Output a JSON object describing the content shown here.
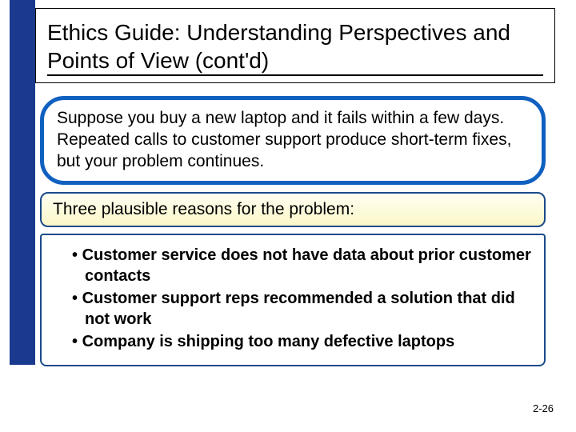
{
  "colors": {
    "sidebar_blue": "#1a3a8f",
    "scenario_border": "#1060c0",
    "box_border": "#1a4a8a",
    "reasons_bg_top": "#fffef2",
    "reasons_bg_bottom": "#fbf7c8",
    "text": "#000000",
    "background": "#ffffff"
  },
  "title": "Ethics Guide: Understanding Perspectives and Points of View (cont'd)",
  "scenario": "Suppose you buy a new laptop and it fails within a few days. Repeated calls to customer support produce short-term fixes, but your problem continues.",
  "reasons_header": "Three plausible reasons for the problem:",
  "reasons": [
    "Customer service does not have data about prior customer contacts",
    "Customer support reps recommended a solution that did not work",
    "Company is shipping too many defective laptops"
  ],
  "page_number": "2-26",
  "typography": {
    "title_fontsize": 28,
    "body_fontsize": 21,
    "list_fontsize": 20,
    "pagenum_fontsize": 13
  }
}
